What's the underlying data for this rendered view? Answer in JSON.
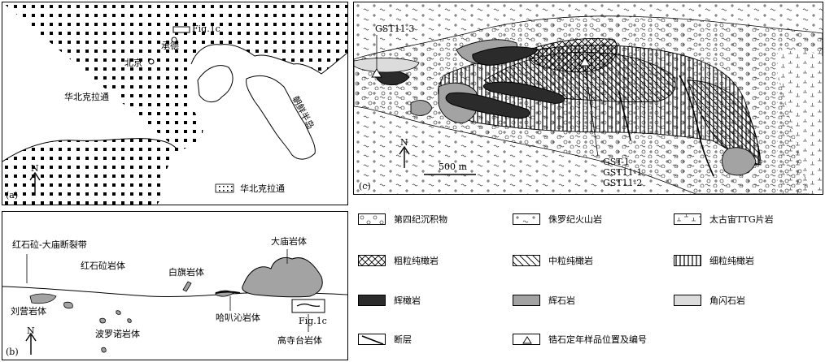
{
  "panel_a": {
    "label": "(a)",
    "north": "N",
    "craton_label": "华北克拉通",
    "korea_label": "朝鲜半岛",
    "beijing": "北京",
    "chengde": "承德",
    "fig_ref": "Fig.1c",
    "legend_label": "华北克拉通"
  },
  "panel_b": {
    "label": "(b)",
    "north": "N",
    "fault": "红石砬-大庙断裂带",
    "hongshila": "红石砬岩体",
    "damiao": "大庙岩体",
    "baiqi": "白旗岩体",
    "liuying": "刘营岩体",
    "boluonuo": "波罗诺岩体",
    "habaqin": "哈叭沁岩体",
    "gaositai": "高寺台岩体",
    "fig_ref": "Fig.1c"
  },
  "panel_c": {
    "label": "(c)",
    "north": "N",
    "scale": "500 m",
    "sample_top": "GST11-3",
    "samples": [
      "GST-1",
      "GST11-1",
      "GST11-2"
    ]
  },
  "legend": [
    {
      "key": "quaternary",
      "label": "第四纪沉积物"
    },
    {
      "key": "jurassic",
      "label": "侏罗纪火山岩"
    },
    {
      "key": "archean",
      "label": "太古宙TTG片岩"
    },
    {
      "key": "coarse",
      "label": "粗粒纯橄岩"
    },
    {
      "key": "medium",
      "label": "中粒纯橄岩"
    },
    {
      "key": "fine",
      "label": "细粒纯橄岩"
    },
    {
      "key": "wehrlite",
      "label": "辉橄岩"
    },
    {
      "key": "pyroxenite",
      "label": "辉石岩"
    },
    {
      "key": "hornblendite",
      "label": "角闪石岩"
    },
    {
      "key": "fault",
      "label": "断层"
    },
    {
      "key": "zircon",
      "label": "锆石定年样品位置及编号"
    }
  ],
  "colors": {
    "wehrlite": "#2b2b2b",
    "pyroxenite": "#a3a3a3",
    "hornblendite": "#dcdcdc"
  }
}
